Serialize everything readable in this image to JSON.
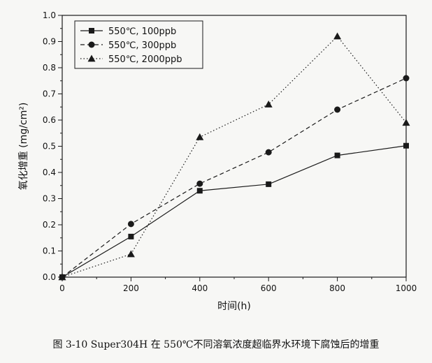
{
  "chart_data": {
    "type": "line",
    "x": [
      0,
      200,
      400,
      600,
      800,
      1000
    ],
    "series": [
      {
        "name": "550℃, 100ppb",
        "marker": "square",
        "line_style": "solid",
        "values": [
          0,
          0.155,
          0.33,
          0.355,
          0.465,
          0.502
        ]
      },
      {
        "name": "550℃, 300ppb",
        "marker": "circle",
        "line_style": "dashed",
        "values": [
          0,
          0.203,
          0.357,
          0.477,
          0.64,
          0.76
        ]
      },
      {
        "name": "550℃, 2000ppb",
        "marker": "triangle",
        "line_style": "dotted",
        "values": [
          0,
          0.088,
          0.535,
          0.66,
          0.92,
          0.59
        ]
      }
    ],
    "xlabel": "时间(h)",
    "ylabel": "氧化增重 (mg/cm²)",
    "xlim": [
      0,
      1000
    ],
    "ylim": [
      0,
      1.0
    ],
    "xticks": [
      "0",
      "200",
      "400",
      "600",
      "800",
      "1000"
    ],
    "yticks": [
      "0.0",
      "0.1",
      "0.2",
      "0.3",
      "0.4",
      "0.5",
      "0.6",
      "0.7",
      "0.8",
      "0.9",
      "1.0"
    ],
    "legend_position": "top-left",
    "grid": false,
    "line_color": "#1a1a1a"
  },
  "caption": "图 3-10 Super304H 在 550℃不同溶氧浓度超临界水环境下腐蚀后的增重"
}
